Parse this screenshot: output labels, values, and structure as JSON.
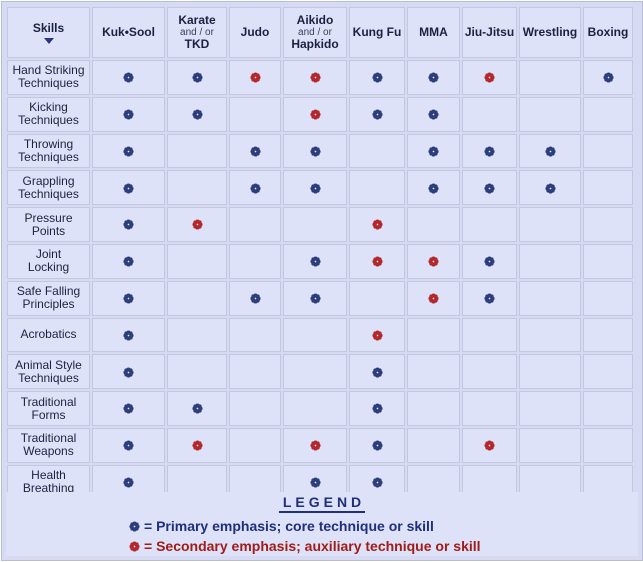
{
  "colors": {
    "primary": "#2c3e7a",
    "secondary": "#b3282b"
  },
  "header": {
    "skills_label": "Skills",
    "sort_icon": "caret-down-icon",
    "styles": [
      {
        "small_top": "",
        "big_top": "Kuk•Sool",
        "small_mid": "",
        "big_bottom": ""
      },
      {
        "small_top": "",
        "big_top": "Karate",
        "small_mid": "and / or",
        "big_bottom": "TKD"
      },
      {
        "small_top": "",
        "big_top": "Judo",
        "small_mid": "",
        "big_bottom": ""
      },
      {
        "small_top": "",
        "big_top": "Aikido",
        "small_mid": "and / or",
        "big_bottom": "Hapkido"
      },
      {
        "small_top": "",
        "big_top": "Kung Fu",
        "small_mid": "",
        "big_bottom": ""
      },
      {
        "small_top": "",
        "big_top": "MMA",
        "small_mid": "",
        "big_bottom": ""
      },
      {
        "small_top": "",
        "big_top": "Jiu-Jitsu",
        "small_mid": "",
        "big_bottom": ""
      },
      {
        "small_top": "",
        "big_top": "Wrestling",
        "small_mid": "",
        "big_bottom": ""
      },
      {
        "small_top": "",
        "big_top": "Boxing",
        "small_mid": "",
        "big_bottom": ""
      }
    ]
  },
  "rows": [
    {
      "line1": "Hand Striking",
      "line2": "Techniques",
      "marks": [
        "P",
        "P",
        "S",
        "S",
        "P",
        "P",
        "S",
        "",
        "P"
      ]
    },
    {
      "line1": "Kicking",
      "line2": "Techniques",
      "marks": [
        "P",
        "P",
        "",
        "S",
        "P",
        "P",
        "",
        "",
        ""
      ]
    },
    {
      "line1": "Throwing",
      "line2": "Techniques",
      "marks": [
        "P",
        "",
        "P",
        "P",
        "",
        "P",
        "P",
        "P",
        ""
      ]
    },
    {
      "line1": "Grappling",
      "line2": "Techniques",
      "marks": [
        "P",
        "",
        "P",
        "P",
        "",
        "P",
        "P",
        "P",
        ""
      ]
    },
    {
      "line1": "Pressure",
      "line2": "Points",
      "marks": [
        "P",
        "S",
        "",
        "",
        "S",
        "",
        "",
        "",
        ""
      ]
    },
    {
      "line1": "Joint",
      "line2": "Locking",
      "marks": [
        "P",
        "",
        "",
        "P",
        "S",
        "S",
        "P",
        "",
        ""
      ]
    },
    {
      "line1": "Safe Falling",
      "line2": "Principles",
      "marks": [
        "P",
        "",
        "P",
        "P",
        "",
        "S",
        "P",
        "",
        ""
      ]
    },
    {
      "line1": "Acrobatics",
      "line2": "",
      "marks": [
        "P",
        "",
        "",
        "",
        "S",
        "",
        "",
        "",
        ""
      ]
    },
    {
      "line1": "Animal Style",
      "line2": "Techniques",
      "marks": [
        "P",
        "",
        "",
        "",
        "P",
        "",
        "",
        "",
        ""
      ]
    },
    {
      "line1": "Traditional",
      "line2": "Forms",
      "marks": [
        "P",
        "P",
        "",
        "",
        "P",
        "",
        "",
        "",
        ""
      ]
    },
    {
      "line1": "Traditional",
      "line2": "Weapons",
      "marks": [
        "P",
        "S",
        "",
        "S",
        "P",
        "",
        "S",
        "",
        ""
      ]
    },
    {
      "line1": "Health",
      "line2": "Breathing",
      "marks": [
        "P",
        "",
        "",
        "P",
        "P",
        "",
        "",
        "",
        ""
      ]
    }
  ],
  "legend": {
    "title": "LEGEND",
    "primary_text": "= Primary emphasis; core technique or skill",
    "secondary_text": "= Secondary emphasis; auxiliary technique or skill",
    "primary_icon": "blue-flower-icon",
    "secondary_icon": "red-flower-icon"
  }
}
